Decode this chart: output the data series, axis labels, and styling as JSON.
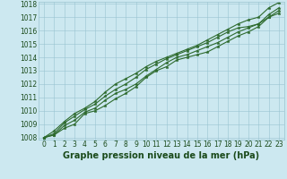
{
  "x": [
    0,
    1,
    2,
    3,
    4,
    5,
    6,
    7,
    8,
    9,
    10,
    11,
    12,
    13,
    14,
    15,
    16,
    17,
    18,
    19,
    20,
    21,
    22,
    23
  ],
  "line1": [
    1008.0,
    1008.2,
    1008.7,
    1009.0,
    1009.8,
    1010.0,
    1010.4,
    1010.9,
    1011.3,
    1011.8,
    1012.5,
    1013.0,
    1013.3,
    1013.8,
    1014.0,
    1014.2,
    1014.4,
    1014.8,
    1015.2,
    1015.6,
    1015.9,
    1016.3,
    1017.0,
    1017.5
  ],
  "line2": [
    1008.0,
    1008.2,
    1008.9,
    1009.3,
    1009.9,
    1010.2,
    1010.8,
    1011.3,
    1011.6,
    1012.0,
    1012.6,
    1013.1,
    1013.6,
    1014.0,
    1014.2,
    1014.5,
    1014.8,
    1015.1,
    1015.5,
    1015.9,
    1016.2,
    1016.5,
    1017.2,
    1017.7
  ],
  "line3": [
    1008.0,
    1008.3,
    1009.1,
    1009.6,
    1010.1,
    1010.5,
    1011.1,
    1011.6,
    1012.0,
    1012.5,
    1013.1,
    1013.5,
    1013.9,
    1014.2,
    1014.5,
    1014.8,
    1015.1,
    1015.5,
    1015.9,
    1016.2,
    1016.3,
    1016.5,
    1017.0,
    1017.3
  ],
  "line4": [
    1008.0,
    1008.5,
    1009.2,
    1009.8,
    1010.2,
    1010.7,
    1011.4,
    1012.0,
    1012.4,
    1012.8,
    1013.3,
    1013.7,
    1014.0,
    1014.3,
    1014.6,
    1014.9,
    1015.3,
    1015.7,
    1016.1,
    1016.5,
    1016.8,
    1017.0,
    1017.7,
    1018.1
  ],
  "ylim": [
    1008,
    1018
  ],
  "yticks": [
    1008,
    1009,
    1010,
    1011,
    1012,
    1013,
    1014,
    1015,
    1016,
    1017,
    1018
  ],
  "xlim": [
    0,
    23
  ],
  "xticks": [
    0,
    1,
    2,
    3,
    4,
    5,
    6,
    7,
    8,
    9,
    10,
    11,
    12,
    13,
    14,
    15,
    16,
    17,
    18,
    19,
    20,
    21,
    22,
    23
  ],
  "line_color": "#2d6a2d",
  "bg_color": "#cce8f0",
  "grid_color": "#99c4d0",
  "xlabel": "Graphe pression niveau de la mer (hPa)",
  "xlabel_color": "#1a4a1a",
  "tick_label_color": "#1a4a1a",
  "xlabel_fontsize": 7.0,
  "tick_fontsize": 5.5,
  "line_width": 0.8,
  "marker_size": 2.5
}
